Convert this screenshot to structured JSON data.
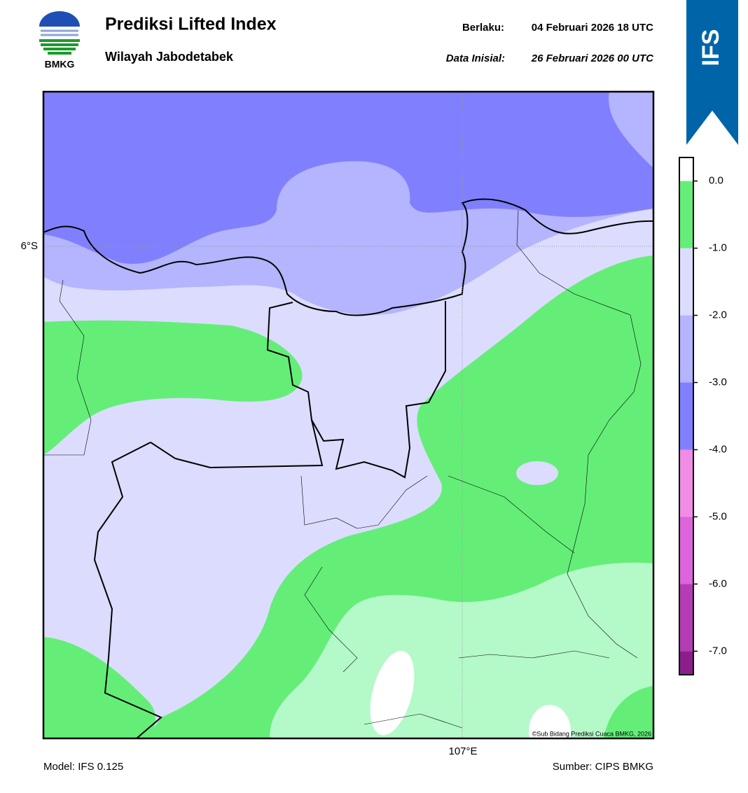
{
  "header": {
    "title": "Prediksi Lifted Index",
    "subtitle": "Wilayah Jabodetabek",
    "valid_label": "Berlaku:",
    "valid": "04 Februari 2026 18 UTC",
    "init_label": "Data Inisial:",
    "init": "26 Februari 2026 00 UTC",
    "logo": "BMKG",
    "badge": "IFS"
  },
  "map": {
    "lat_label": "6°S",
    "lon_label": "107°E",
    "credit": "©Sub Bidang Prediksi Cuaca BMKG, 2026"
  },
  "colorbar": {
    "bins": [
      -7.35,
      -7,
      -6,
      -5,
      -4,
      -3,
      -2,
      -1,
      0,
      0.35
    ],
    "colors": [
      "#8c1e8c",
      "#b43cb4",
      "#dc64dc",
      "#f08ce6",
      "#8080ff",
      "#b4b4ff",
      "#dcdcfe",
      "#64ee78",
      "#b4f9c8"
    ],
    "top_color": "#ffffff",
    "ticks": [
      {
        "value": 0,
        "label": "0.0"
      },
      {
        "value": -1,
        "label": "-1.0"
      },
      {
        "value": -2,
        "label": "-2.0"
      },
      {
        "value": -3,
        "label": "-3.0"
      },
      {
        "value": -4,
        "label": "-4.0"
      },
      {
        "value": -5,
        "label": "-5.0"
      },
      {
        "value": -6,
        "label": "-6.0"
      },
      {
        "value": -7,
        "label": "-7.0"
      }
    ]
  },
  "footer": {
    "model": "Model: IFS 0.125",
    "source": "Sumber: CIPS BMKG"
  }
}
